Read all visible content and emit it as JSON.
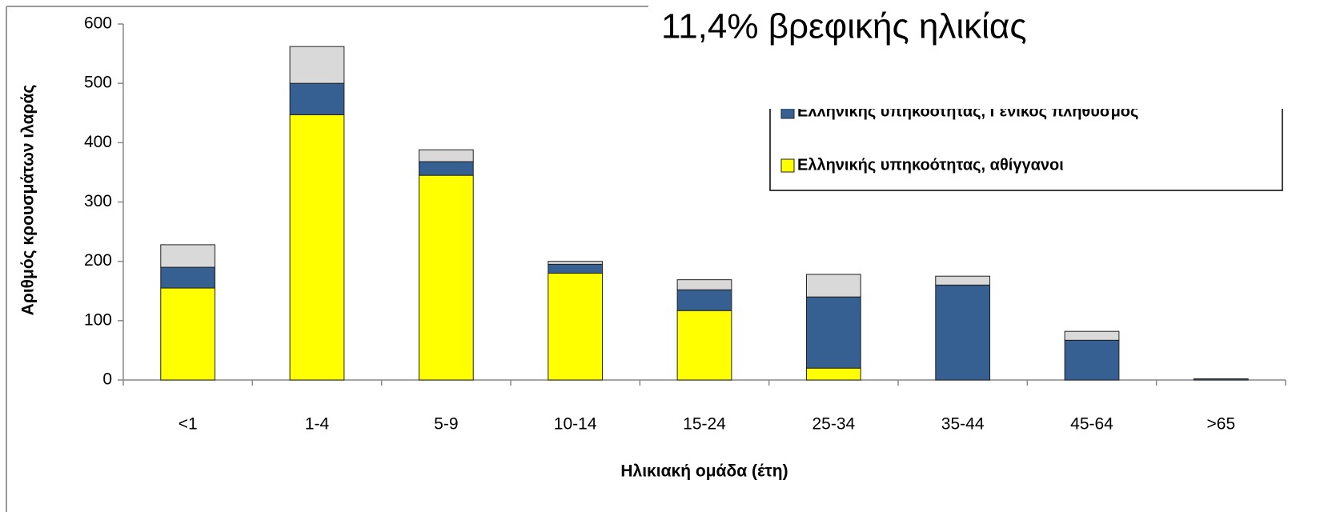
{
  "chart_data": {
    "type": "stacked_bar",
    "annotation": "11,4% βρεφικής ηλικίας",
    "x_label": "Ηλικιακή ομάδα (έτη)",
    "y_label": "Αριθμός κρουσμάτων ιλαράς",
    "categories": [
      "<1",
      "1-4",
      "5-9",
      "10-14",
      "15-24",
      "25-34",
      "35-44",
      "45-64",
      ">65"
    ],
    "series": [
      {
        "name": "Ελληνικής υπηκοότητας, αθίγγανοι",
        "color": "#ffff00",
        "values": [
          155,
          447,
          345,
          180,
          117,
          20,
          0,
          0,
          0
        ]
      },
      {
        "name": "Ελληνικής υπηκοότητας, Γενικός πληθυσμός",
        "color": "#376092",
        "values": [
          35,
          53,
          23,
          15,
          35,
          120,
          160,
          67,
          2
        ]
      },
      {
        "color": "#d9d9d9",
        "values": [
          38,
          62,
          20,
          5,
          17,
          38,
          15,
          15,
          0
        ]
      }
    ],
    "ylim": [
      0,
      600
    ],
    "yticks": [
      0,
      100,
      200,
      300,
      400,
      500,
      600
    ]
  }
}
